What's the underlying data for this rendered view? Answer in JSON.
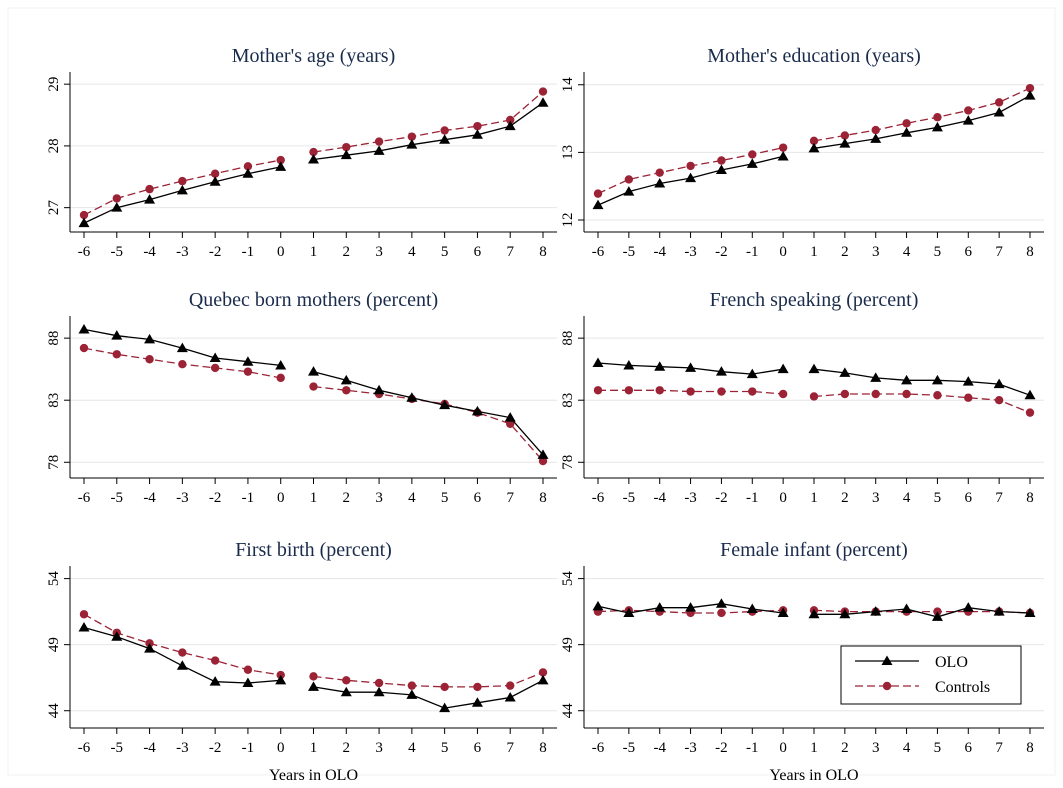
{
  "colors": {
    "olo": "#000000",
    "controls": "#9b2335",
    "grid": "#e6e6e6",
    "title": "#1a2b4c"
  },
  "legend": {
    "olo_label": "OLO",
    "controls_label": "Controls",
    "placement": "bottom-right of last panel"
  },
  "chart_data": [
    {
      "type": "line",
      "title": "Mother's age (years)",
      "xlabel": "",
      "x": [
        -6,
        -5,
        -4,
        -3,
        -2,
        -1,
        0,
        1,
        2,
        3,
        4,
        5,
        6,
        7,
        8
      ],
      "ylim": [
        26.8,
        29.1
      ],
      "yticks": [
        27,
        28,
        29
      ],
      "grid": true,
      "break_between": [
        0,
        1
      ],
      "series": [
        {
          "name": "OLO",
          "values": [
            26.75,
            27.0,
            27.13,
            27.28,
            27.42,
            27.55,
            27.66,
            27.78,
            27.85,
            27.92,
            28.02,
            28.1,
            28.18,
            28.32,
            28.7
          ]
        },
        {
          "name": "Controls",
          "values": [
            26.88,
            27.15,
            27.3,
            27.43,
            27.55,
            27.67,
            27.77,
            27.9,
            27.98,
            28.07,
            28.15,
            28.25,
            28.32,
            28.42,
            28.88
          ]
        }
      ]
    },
    {
      "type": "line",
      "title": "Mother's education (years)",
      "xlabel": "",
      "x": [
        -6,
        -5,
        -4,
        -3,
        -2,
        -1,
        0,
        1,
        2,
        3,
        4,
        5,
        6,
        7,
        8
      ],
      "ylim": [
        12.0,
        14.1
      ],
      "yticks": [
        12,
        13,
        14
      ],
      "grid": true,
      "break_between": [
        0,
        1
      ],
      "series": [
        {
          "name": "OLO",
          "values": [
            12.22,
            12.42,
            12.54,
            12.62,
            12.74,
            12.83,
            12.94,
            13.06,
            13.13,
            13.2,
            13.29,
            13.37,
            13.47,
            13.59,
            13.84
          ]
        },
        {
          "name": "Controls",
          "values": [
            12.39,
            12.6,
            12.7,
            12.8,
            12.88,
            12.97,
            13.07,
            13.17,
            13.25,
            13.33,
            13.43,
            13.52,
            13.62,
            13.74,
            13.95
          ]
        }
      ]
    },
    {
      "type": "line",
      "title": "Quebec born mothers (percent)",
      "xlabel": "",
      "x": [
        -6,
        -5,
        -4,
        -3,
        -2,
        -1,
        0,
        1,
        2,
        3,
        4,
        5,
        6,
        7,
        8
      ],
      "ylim": [
        77.7,
        89.3
      ],
      "yticks": [
        78,
        83,
        88
      ],
      "grid": true,
      "break_between": [
        0,
        1
      ],
      "series": [
        {
          "name": "OLO",
          "values": [
            88.7,
            88.2,
            87.9,
            87.2,
            86.4,
            86.1,
            85.8,
            85.3,
            84.6,
            83.8,
            83.2,
            82.6,
            82.1,
            81.6,
            78.6
          ]
        },
        {
          "name": "Controls",
          "values": [
            87.2,
            86.7,
            86.3,
            85.9,
            85.6,
            85.3,
            84.8,
            84.1,
            83.8,
            83.5,
            83.1,
            82.7,
            82.0,
            81.1,
            78.1
          ]
        }
      ]
    },
    {
      "type": "line",
      "title": "French speaking (percent)",
      "xlabel": "",
      "x": [
        -6,
        -5,
        -4,
        -3,
        -2,
        -1,
        0,
        1,
        2,
        3,
        4,
        5,
        6,
        7,
        8
      ],
      "ylim": [
        77.7,
        89.3
      ],
      "yticks": [
        78,
        83,
        88
      ],
      "grid": true,
      "break_between": [
        0,
        1
      ],
      "series": [
        {
          "name": "OLO",
          "values": [
            86.0,
            85.8,
            85.7,
            85.6,
            85.3,
            85.1,
            85.5,
            85.5,
            85.2,
            84.8,
            84.6,
            84.6,
            84.5,
            84.3,
            83.4
          ]
        },
        {
          "name": "Controls",
          "values": [
            83.8,
            83.8,
            83.8,
            83.7,
            83.7,
            83.7,
            83.5,
            83.3,
            83.5,
            83.5,
            83.5,
            83.4,
            83.2,
            83.0,
            82.0
          ]
        }
      ]
    },
    {
      "type": "line",
      "title": "First birth (percent)",
      "xlabel": "Years in OLO",
      "x": [
        -6,
        -5,
        -4,
        -3,
        -2,
        -1,
        0,
        1,
        2,
        3,
        4,
        5,
        6,
        7,
        8
      ],
      "ylim": [
        43.6,
        54.5
      ],
      "yticks": [
        44,
        49,
        54
      ],
      "grid": true,
      "break_between": [
        0,
        1
      ],
      "series": [
        {
          "name": "OLO",
          "values": [
            50.3,
            49.6,
            48.7,
            47.4,
            46.2,
            46.1,
            46.3,
            45.8,
            45.4,
            45.4,
            45.2,
            44.2,
            44.6,
            45.0,
            46.3
          ]
        },
        {
          "name": "Controls",
          "values": [
            51.3,
            49.9,
            49.1,
            48.4,
            47.8,
            47.1,
            46.7,
            46.6,
            46.3,
            46.1,
            45.9,
            45.8,
            45.8,
            45.9,
            46.9
          ]
        }
      ]
    },
    {
      "type": "line",
      "title": "Female infant (percent)",
      "xlabel": "Years in OLO",
      "x": [
        -6,
        -5,
        -4,
        -3,
        -2,
        -1,
        0,
        1,
        2,
        3,
        4,
        5,
        6,
        7,
        8
      ],
      "ylim": [
        43.6,
        54.5
      ],
      "yticks": [
        44,
        49,
        54
      ],
      "grid": true,
      "break_between": [
        0,
        1
      ],
      "series": [
        {
          "name": "OLO",
          "values": [
            51.9,
            51.4,
            51.8,
            51.8,
            52.1,
            51.7,
            51.4,
            51.3,
            51.3,
            51.5,
            51.7,
            51.1,
            51.8,
            51.5,
            51.4
          ]
        },
        {
          "name": "Controls",
          "values": [
            51.5,
            51.6,
            51.5,
            51.4,
            51.4,
            51.5,
            51.6,
            51.6,
            51.5,
            51.5,
            51.5,
            51.5,
            51.5,
            51.5,
            51.4
          ]
        }
      ]
    }
  ]
}
